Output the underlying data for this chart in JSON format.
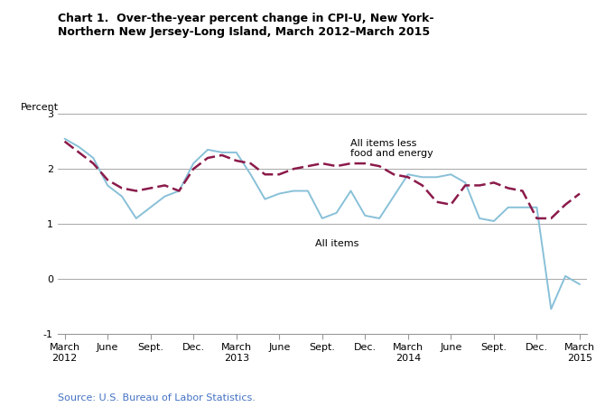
{
  "title_line1": "Chart 1.  Over-the-year percent change in CPI-U, New York-",
  "title_line2": "Northern New Jersey-Long Island, March 2012–March 2015",
  "ylabel": "Percent",
  "source": "Source: U.S. Bureau of Labor Statistics.",
  "ylim": [
    -1,
    3
  ],
  "yticks": [
    -1,
    0,
    1,
    2,
    3
  ],
  "all_items_color": "#88C0D8",
  "core_color": "#8B1A4A",
  "tick_labels": [
    "March\n2012",
    "June",
    "Sept.",
    "Dec.",
    "March\n2013",
    "June",
    "Sept.",
    "Dec.",
    "March\n2014",
    "June",
    "Sept.",
    "Dec.",
    "March\n2015"
  ],
  "annotation_core": "All items less\nfood and energy",
  "annotation_all": "All items",
  "all_items_x": [
    0,
    1,
    2,
    3,
    4,
    5,
    6,
    7,
    8,
    9,
    10,
    11,
    12,
    13,
    14,
    15,
    16,
    17,
    18,
    19,
    20,
    21,
    22,
    23,
    24,
    25,
    26,
    27,
    28,
    29,
    30,
    31,
    32,
    33,
    34,
    35,
    36
  ],
  "all_items_y": [
    2.55,
    2.4,
    2.2,
    1.7,
    1.5,
    1.1,
    1.3,
    1.5,
    1.6,
    2.1,
    2.35,
    2.3,
    2.3,
    1.9,
    1.45,
    1.55,
    1.6,
    1.6,
    1.1,
    1.2,
    1.6,
    1.15,
    1.1,
    1.5,
    1.9,
    1.85,
    1.85,
    1.9,
    1.75,
    1.1,
    1.05,
    1.3,
    1.3,
    1.3,
    -0.55,
    0.05,
    -0.1
  ],
  "core_x": [
    0,
    1,
    2,
    3,
    4,
    5,
    6,
    7,
    8,
    9,
    10,
    11,
    12,
    13,
    14,
    15,
    16,
    17,
    18,
    19,
    20,
    21,
    22,
    23,
    24,
    25,
    26,
    27,
    28,
    29,
    30,
    31,
    32,
    33,
    34,
    35,
    36
  ],
  "core_y": [
    2.5,
    2.3,
    2.1,
    1.8,
    1.65,
    1.6,
    1.65,
    1.7,
    1.6,
    2.0,
    2.2,
    2.25,
    2.15,
    2.1,
    1.9,
    1.9,
    2.0,
    2.05,
    2.1,
    2.05,
    2.1,
    2.1,
    2.05,
    1.9,
    1.85,
    1.7,
    1.4,
    1.35,
    1.7,
    1.7,
    1.75,
    1.65,
    1.6,
    1.1,
    1.1,
    1.35,
    1.55
  ]
}
